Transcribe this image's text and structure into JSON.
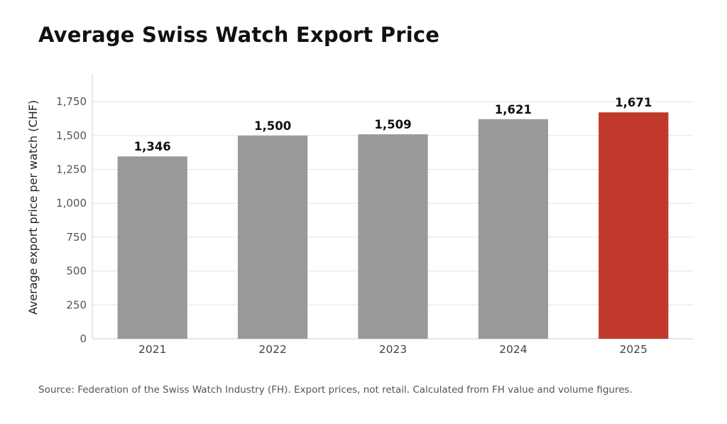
{
  "chart_data": {
    "type": "bar",
    "title": "Average Swiss Watch Export Price",
    "xlabel": "",
    "ylabel": "Average export price per watch (CHF)",
    "categories": [
      "2021",
      "2022",
      "2023",
      "2024",
      "2025"
    ],
    "values": [
      1346,
      1500,
      1509,
      1621,
      1671
    ],
    "data_labels": [
      "1,346",
      "1,500",
      "1,509",
      "1,621",
      "1,671"
    ],
    "ylim": [
      0,
      1950
    ],
    "yticks": [
      0,
      250,
      500,
      750,
      1000,
      1250,
      1500,
      1750
    ],
    "ytick_labels": [
      "0",
      "250",
      "500",
      "750",
      "1,000",
      "1,250",
      "1,500",
      "1,750"
    ],
    "grid": true,
    "bar_colors": [
      "#999999",
      "#999999",
      "#999999",
      "#999999",
      "#c0392b"
    ],
    "highlight_color": "#c0392b",
    "base_color": "#999999"
  },
  "source_note": "Source: Federation of the Swiss Watch Industry (FH). Export prices, not retail. Calculated from FH value and volume figures."
}
